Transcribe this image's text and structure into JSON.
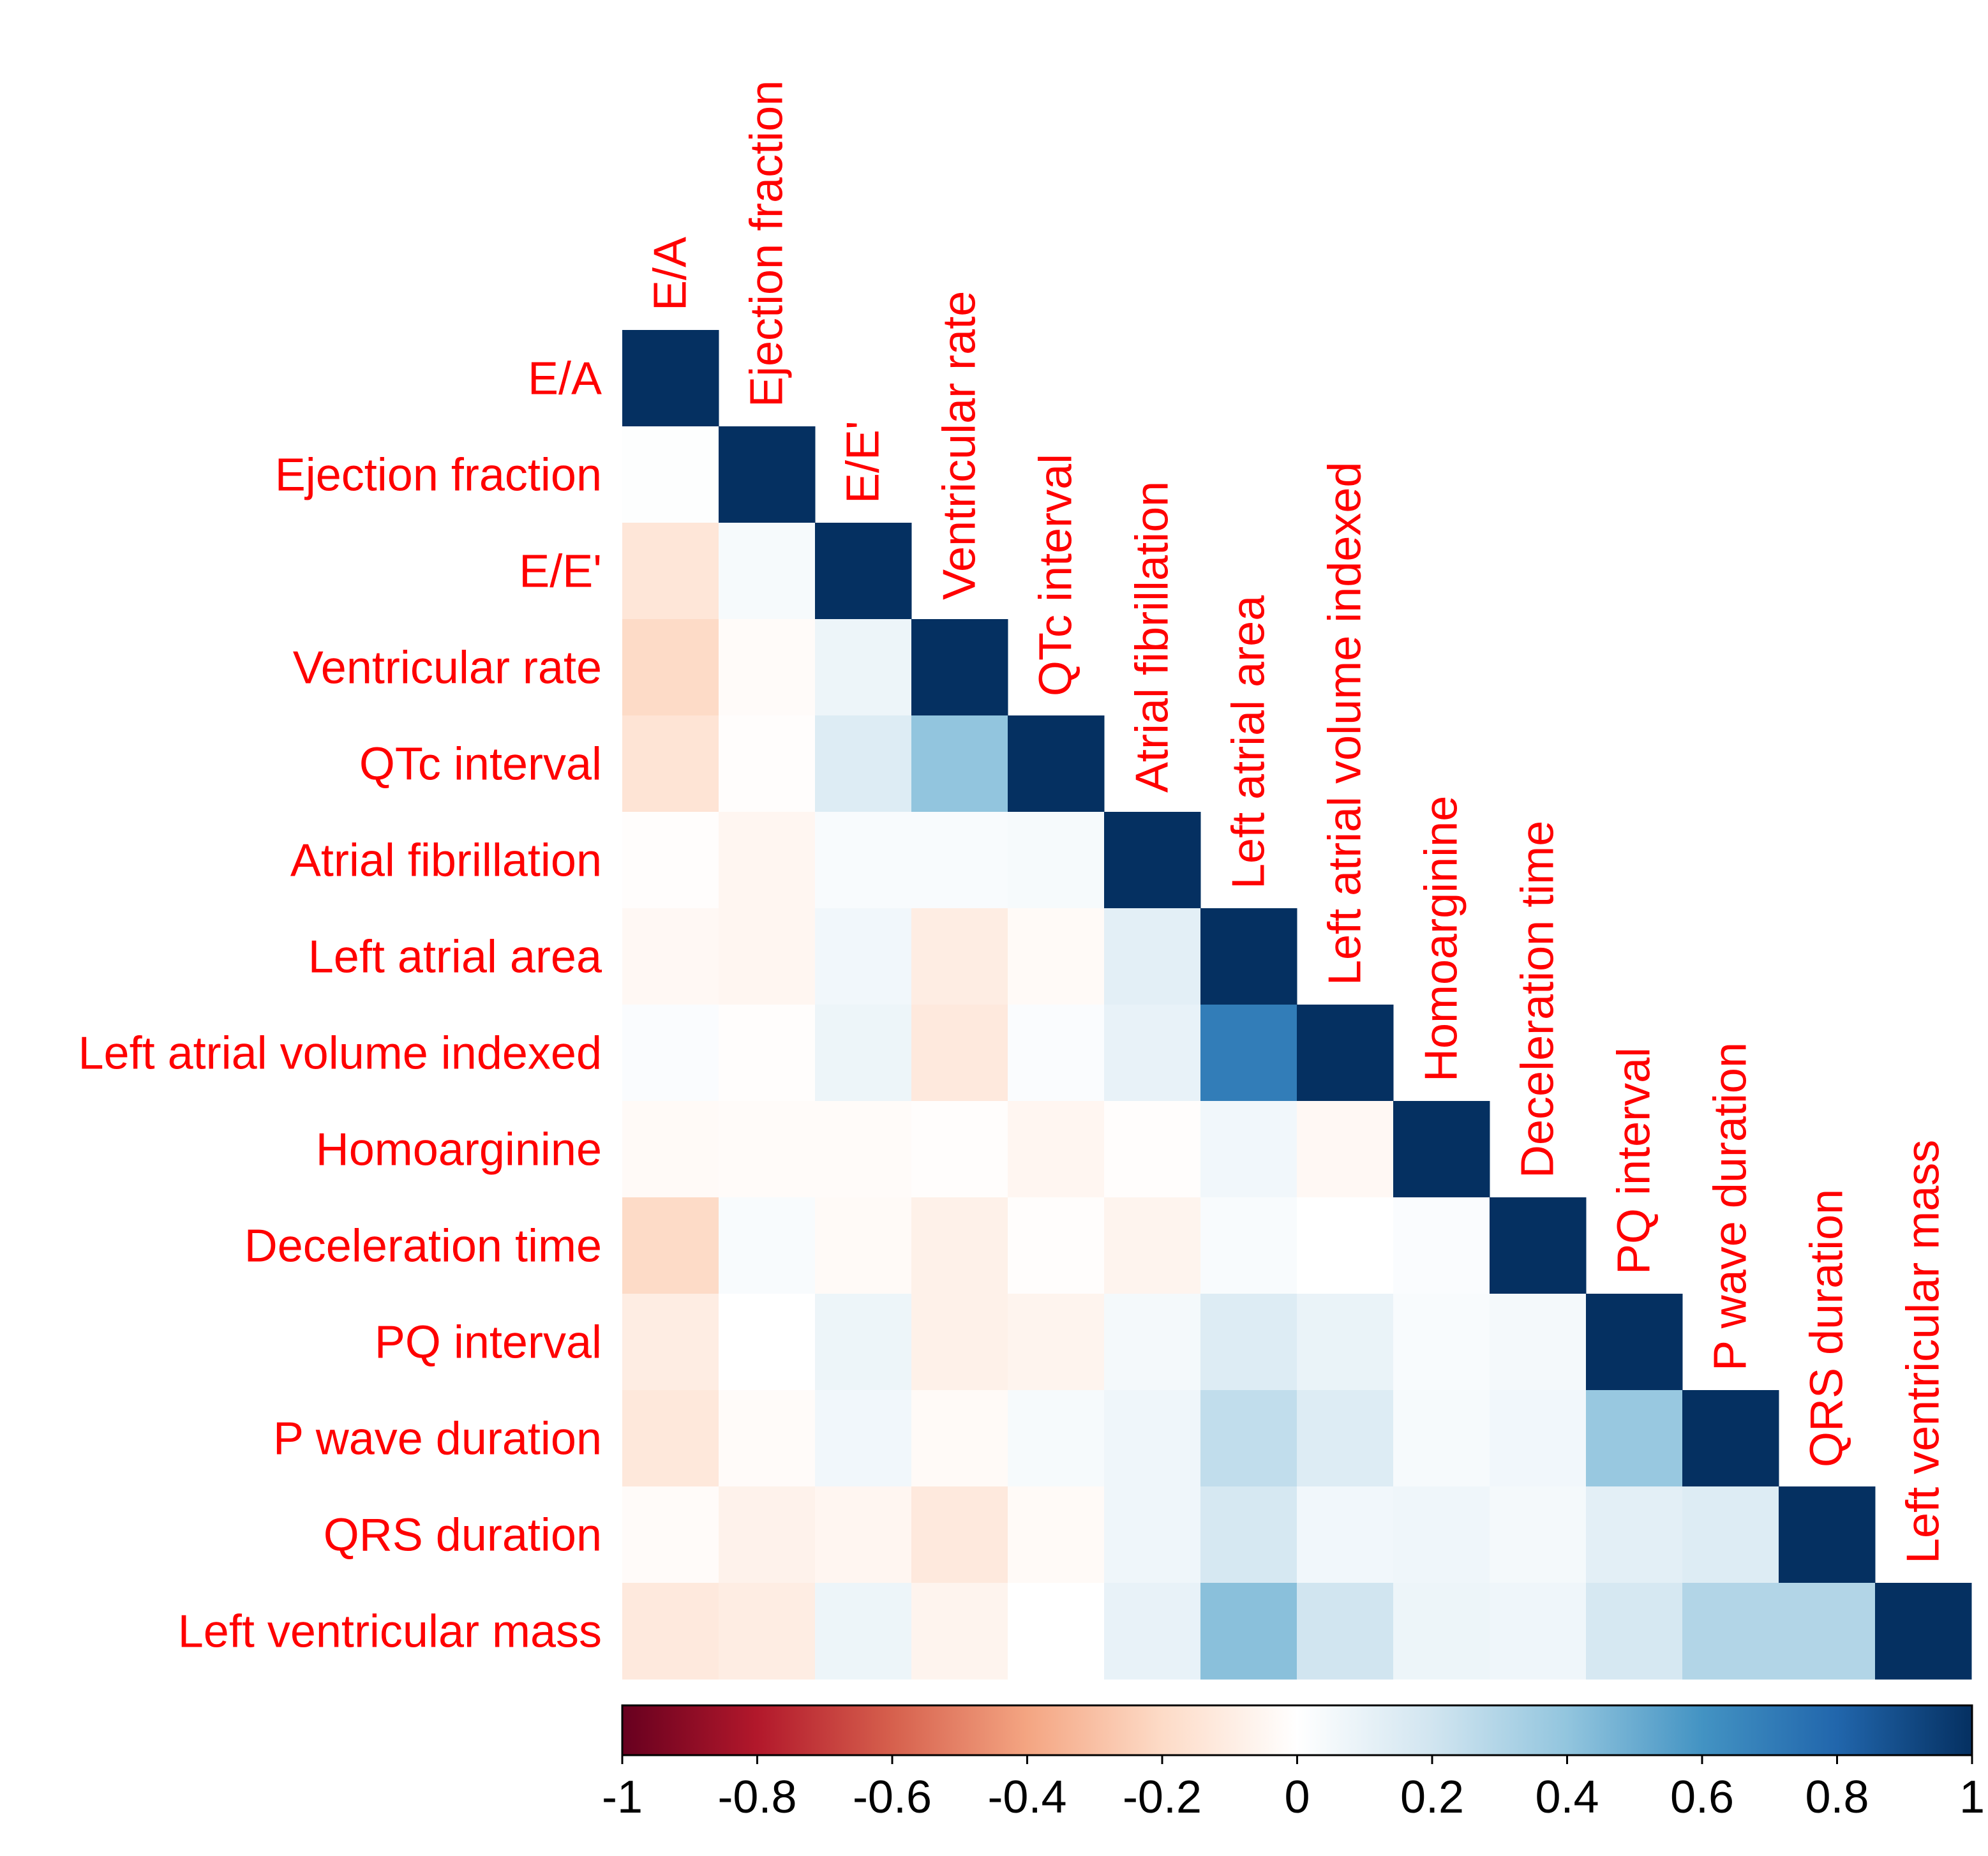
{
  "chart_data": {
    "type": "heatmap",
    "subtype": "correlation-lower-triangle",
    "variables": [
      "E/A",
      "Ejection fraction",
      "E/E'",
      "Ventricular rate",
      "QTc interval",
      "Atrial fibrillation",
      "Left atrial area",
      "Left atrial volume indexed",
      "Homoarginine",
      "Deceleration time",
      "PQ interval",
      "P wave duration",
      "QRS duration",
      "Left ventricular mass"
    ],
    "matrix": [
      [
        1.0
      ],
      [
        0.01,
        1.0
      ],
      [
        -0.14,
        0.04,
        1.0
      ],
      [
        -0.2,
        -0.02,
        0.08,
        1.0
      ],
      [
        -0.15,
        -0.01,
        0.15,
        0.4,
        1.0
      ],
      [
        -0.01,
        -0.05,
        0.03,
        0.03,
        0.04,
        1.0
      ],
      [
        -0.04,
        -0.05,
        0.06,
        -0.1,
        -0.03,
        0.12,
        1.0
      ],
      [
        0.02,
        -0.01,
        0.08,
        -0.12,
        0.02,
        0.1,
        0.7,
        1.0
      ],
      [
        -0.03,
        -0.02,
        -0.02,
        -0.01,
        -0.05,
        -0.01,
        0.06,
        -0.04,
        1.0
      ],
      [
        -0.2,
        0.03,
        -0.03,
        -0.08,
        -0.01,
        -0.06,
        0.03,
        0.0,
        0.02,
        1.0
      ],
      [
        -0.1,
        0.0,
        0.08,
        -0.08,
        -0.06,
        0.05,
        0.15,
        0.09,
        0.03,
        0.05,
        1.0
      ],
      [
        -0.13,
        -0.02,
        0.06,
        -0.03,
        0.04,
        0.07,
        0.25,
        0.15,
        0.04,
        0.06,
        0.38,
        1.0
      ],
      [
        -0.02,
        -0.07,
        -0.05,
        -0.12,
        -0.03,
        0.07,
        0.18,
        0.06,
        0.07,
        0.05,
        0.12,
        0.15,
        1.0
      ],
      [
        -0.12,
        -0.1,
        0.08,
        -0.06,
        0.0,
        0.1,
        0.42,
        0.2,
        0.08,
        0.07,
        0.18,
        0.3,
        0.3,
        1.0
      ]
    ],
    "colorbar": {
      "ticks": [
        "-1",
        "-0.8",
        "-0.6",
        "-0.4",
        "-0.2",
        "0",
        "0.2",
        "0.4",
        "0.6",
        "0.8",
        "1"
      ],
      "range": [
        -1,
        1
      ]
    },
    "colors": {
      "stops": [
        "#67001f",
        "#b2182b",
        "#d6604d",
        "#f4a582",
        "#fddbc7",
        "#ffffff",
        "#d1e5f0",
        "#92c5de",
        "#4393c3",
        "#2166ac",
        "#053061"
      ],
      "label": "#ff0000",
      "tick": "#000000"
    }
  }
}
